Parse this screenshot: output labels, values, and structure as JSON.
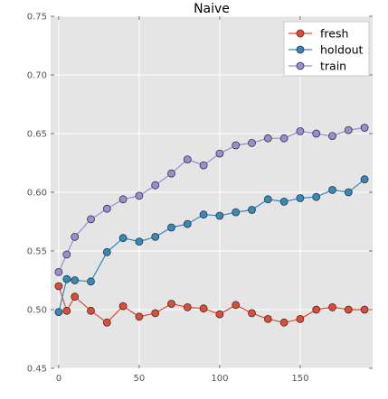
{
  "chart_data": {
    "type": "line",
    "title": "Naive",
    "xlabel": "",
    "ylabel": "",
    "xlim": [
      -5,
      195
    ],
    "ylim": [
      0.45,
      0.75
    ],
    "xticks": [
      0,
      50,
      100,
      150
    ],
    "yticks": [
      0.45,
      0.5,
      0.55,
      0.6,
      0.65,
      0.7,
      0.75
    ],
    "ytick_labels": [
      "0.45",
      "0.50",
      "0.55",
      "0.60",
      "0.65",
      "0.70",
      "0.75"
    ],
    "grid": true,
    "legend_position": "top-right",
    "x": [
      0,
      5,
      10,
      20,
      30,
      40,
      50,
      60,
      70,
      80,
      90,
      100,
      110,
      120,
      130,
      140,
      150,
      160,
      170,
      180,
      190
    ],
    "series": [
      {
        "name": "fresh",
        "color": "#E24A33",
        "x": [
          0,
          5,
          10,
          20,
          30,
          40,
          50,
          60,
          70,
          80,
          90,
          100,
          110,
          120,
          130,
          140,
          150,
          160,
          170,
          180,
          190
        ],
        "values": [
          0.52,
          0.499,
          0.511,
          0.499,
          0.489,
          0.503,
          0.494,
          0.497,
          0.505,
          0.502,
          0.501,
          0.496,
          0.504,
          0.497,
          0.492,
          0.489,
          0.492,
          0.5,
          0.502,
          0.5,
          0.5
        ]
      },
      {
        "name": "holdout",
        "color": "#348ABD",
        "x": [
          0,
          5,
          10,
          20,
          30,
          40,
          50,
          60,
          70,
          80,
          90,
          100,
          110,
          120,
          130,
          140,
          150,
          160,
          170,
          180,
          190
        ],
        "values": [
          0.498,
          0.526,
          0.525,
          0.524,
          0.549,
          0.561,
          0.558,
          0.562,
          0.57,
          0.573,
          0.581,
          0.58,
          0.583,
          0.585,
          0.594,
          0.592,
          0.595,
          0.596,
          0.602,
          0.6,
          0.611
        ]
      },
      {
        "name": "train",
        "color": "#988ED5",
        "x": [
          0,
          5,
          10,
          20,
          30,
          40,
          50,
          60,
          70,
          80,
          90,
          100,
          110,
          120,
          130,
          140,
          150,
          160,
          170,
          180,
          190
        ],
        "values": [
          0.532,
          0.547,
          0.562,
          0.577,
          0.586,
          0.594,
          0.597,
          0.606,
          0.616,
          0.628,
          0.623,
          0.633,
          0.64,
          0.642,
          0.646,
          0.646,
          0.652,
          0.65,
          0.648,
          0.653,
          0.655
        ]
      }
    ]
  },
  "colors": {
    "plot_background": "#E5E5E5",
    "grid": "#FFFFFF",
    "legend_background": "#FFFFFF",
    "marker_edge": "#333333"
  }
}
